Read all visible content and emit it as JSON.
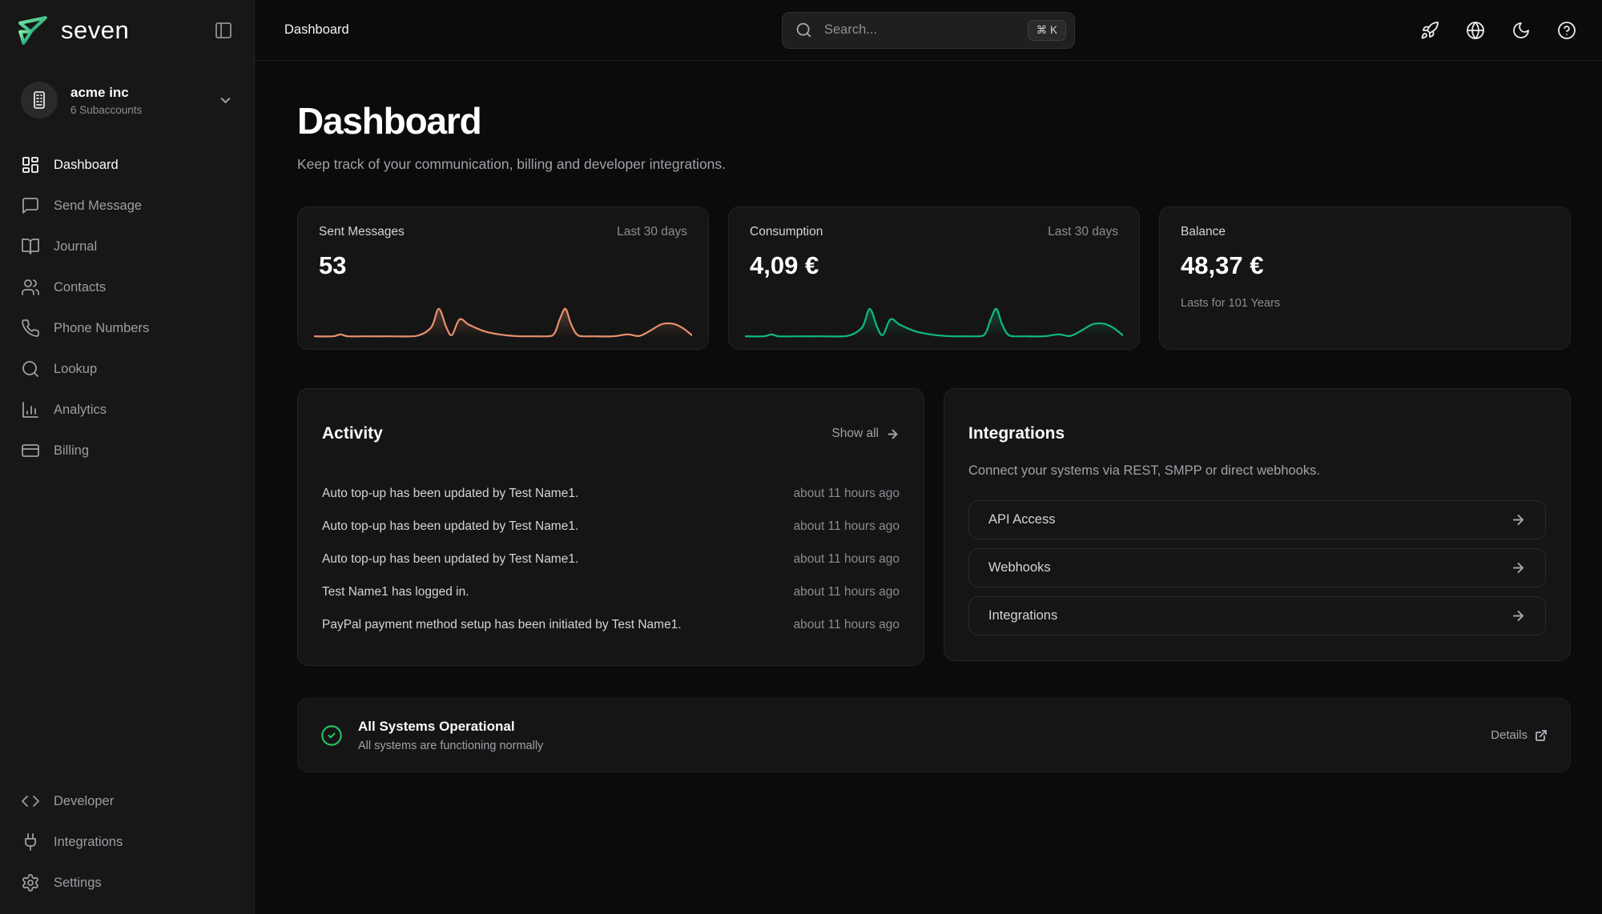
{
  "brand": {
    "name": "seven"
  },
  "sidebar": {
    "account": {
      "name": "acme inc",
      "subtitle": "6 Subaccounts"
    },
    "items": [
      {
        "label": "Dashboard",
        "icon": "dashboard-grid-icon",
        "active": true
      },
      {
        "label": "Send Message",
        "icon": "message-icon",
        "active": false
      },
      {
        "label": "Journal",
        "icon": "book-open-icon",
        "active": false
      },
      {
        "label": "Contacts",
        "icon": "users-icon",
        "active": false
      },
      {
        "label": "Phone Numbers",
        "icon": "phone-icon",
        "active": false
      },
      {
        "label": "Lookup",
        "icon": "search-icon",
        "active": false
      },
      {
        "label": "Analytics",
        "icon": "bar-chart-icon",
        "active": false
      },
      {
        "label": "Billing",
        "icon": "credit-card-icon",
        "active": false
      }
    ],
    "footer_items": [
      {
        "label": "Developer",
        "icon": "code-icon"
      },
      {
        "label": "Integrations",
        "icon": "plug-icon"
      },
      {
        "label": "Settings",
        "icon": "gear-icon"
      }
    ]
  },
  "header": {
    "breadcrumb": "Dashboard",
    "search": {
      "placeholder": "Search...",
      "shortcut": "⌘  K"
    },
    "icons": [
      "rocket-icon",
      "globe-icon",
      "moon-icon",
      "help-icon"
    ]
  },
  "page": {
    "title": "Dashboard",
    "subtitle": "Keep track of your communication, billing and developer integrations."
  },
  "stats": {
    "cards": [
      {
        "label": "Sent Messages",
        "range": "Last 30 days",
        "value": "53",
        "spark_color": "#e8906d",
        "sparkline": [
          [
            0,
            2
          ],
          [
            5,
            2
          ],
          [
            7,
            8
          ],
          [
            9,
            2
          ],
          [
            14,
            2
          ],
          [
            20,
            2
          ],
          [
            27,
            3
          ],
          [
            31,
            30
          ],
          [
            33,
            88
          ],
          [
            35,
            30
          ],
          [
            36.5,
            6
          ],
          [
            38.5,
            55
          ],
          [
            41,
            38
          ],
          [
            45,
            18
          ],
          [
            49,
            8
          ],
          [
            53,
            3
          ],
          [
            58,
            2
          ],
          [
            63,
            4
          ],
          [
            65,
            55
          ],
          [
            66.5,
            88
          ],
          [
            68,
            40
          ],
          [
            70,
            4
          ],
          [
            74,
            2
          ],
          [
            79,
            2
          ],
          [
            83,
            8
          ],
          [
            86,
            3
          ],
          [
            89,
            20
          ],
          [
            92,
            40
          ],
          [
            95,
            41
          ],
          [
            97.5,
            28
          ],
          [
            100,
            5
          ]
        ]
      },
      {
        "label": "Consumption",
        "range": "Last 30 days",
        "value": "4,09 €",
        "spark_color": "#10b981",
        "sparkline": [
          [
            0,
            2
          ],
          [
            5,
            2
          ],
          [
            7,
            8
          ],
          [
            9,
            2
          ],
          [
            14,
            2
          ],
          [
            20,
            2
          ],
          [
            27,
            3
          ],
          [
            31,
            30
          ],
          [
            33,
            88
          ],
          [
            35,
            30
          ],
          [
            36.5,
            6
          ],
          [
            38.5,
            55
          ],
          [
            41,
            38
          ],
          [
            45,
            18
          ],
          [
            49,
            8
          ],
          [
            53,
            3
          ],
          [
            58,
            2
          ],
          [
            63,
            4
          ],
          [
            65,
            55
          ],
          [
            66.5,
            88
          ],
          [
            68,
            40
          ],
          [
            70,
            4
          ],
          [
            74,
            2
          ],
          [
            79,
            2
          ],
          [
            83,
            8
          ],
          [
            86,
            3
          ],
          [
            89,
            20
          ],
          [
            92,
            40
          ],
          [
            95,
            41
          ],
          [
            97.5,
            28
          ],
          [
            100,
            5
          ]
        ]
      },
      {
        "label": "Balance",
        "range": "",
        "value": "48,37 €",
        "note": "Lasts for 101 Years"
      }
    ]
  },
  "activity": {
    "title": "Activity",
    "show_all": "Show all",
    "rows": [
      {
        "text": "Auto top-up has been updated by Test Name1.",
        "time": "about 11 hours ago"
      },
      {
        "text": "Auto top-up has been updated by Test Name1.",
        "time": "about 11 hours ago"
      },
      {
        "text": "Auto top-up has been updated by Test Name1.",
        "time": "about 11 hours ago"
      },
      {
        "text": "Test Name1 has logged in.",
        "time": "about 11 hours ago"
      },
      {
        "text": "PayPal payment method setup has been initiated by Test Name1.",
        "time": "about 11 hours ago"
      }
    ]
  },
  "integrations": {
    "title": "Integrations",
    "subtitle": "Connect your systems via REST, SMPP or direct webhooks.",
    "rows": [
      {
        "label": "API Access"
      },
      {
        "label": "Webhooks"
      },
      {
        "label": "Integrations"
      }
    ]
  },
  "status": {
    "title": "All Systems Operational",
    "subtitle": "All systems are functioning normally",
    "details_label": "Details"
  },
  "colors": {
    "accent_green": "#22c55e",
    "spark_orange": "#e8906d",
    "spark_green": "#10b981",
    "logo_green_light": "#86efac",
    "logo_green_dark": "#059669"
  }
}
